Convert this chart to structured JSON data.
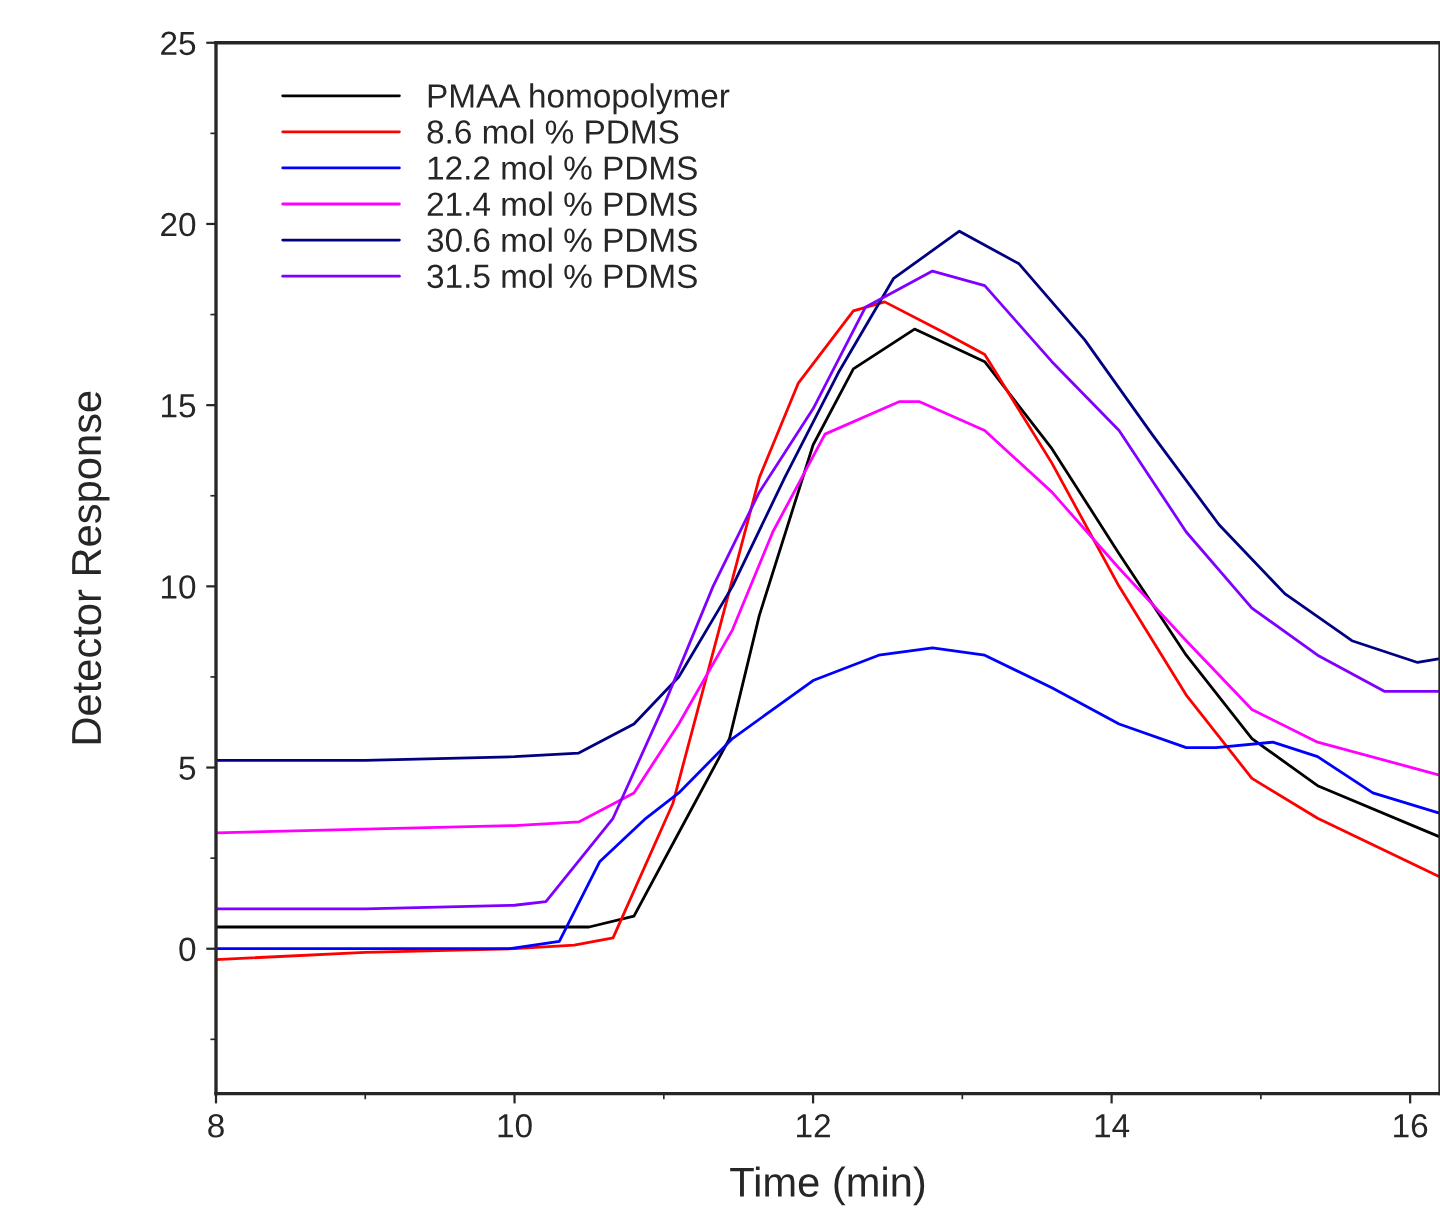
{
  "chart_data": {
    "type": "line",
    "xlabel": "Time (min)",
    "ylabel": "Detector Response",
    "xlim": [
      8,
      16.2
    ],
    "ylim": [
      -4,
      25
    ],
    "xticks": [
      8,
      10,
      12,
      14,
      16
    ],
    "yticks": [
      0,
      5,
      10,
      15,
      20,
      25
    ],
    "grid": false,
    "legend": "top left",
    "marker": "none",
    "line_style": "solid",
    "series": [
      {
        "name": "PMAA homopolymer",
        "color": "#000000",
        "x": [
          8,
          9,
          10,
          10.5,
          10.8,
          11.1,
          11.44,
          11.64,
          12.0,
          12.27,
          12.68,
          13.15,
          13.6,
          14.05,
          14.5,
          14.94,
          15.38,
          16.19
        ],
        "values": [
          0.6,
          0.6,
          0.6,
          0.6,
          0.9,
          3.2,
          5.8,
          9.2,
          13.9,
          16.0,
          17.1,
          16.2,
          13.8,
          10.9,
          8.1,
          5.8,
          4.5,
          3.1
        ]
      },
      {
        "name": "8.6 mol % PDMS",
        "color": "#ff0000",
        "x": [
          8,
          9,
          10,
          10.4,
          10.66,
          11.06,
          11.37,
          11.64,
          11.9,
          12.27,
          12.48,
          12.88,
          13.15,
          13.6,
          14.05,
          14.5,
          14.94,
          15.38,
          16.19
        ],
        "values": [
          -0.3,
          -0.1,
          0.0,
          0.1,
          0.3,
          4.0,
          8.8,
          13.0,
          15.6,
          17.6,
          17.85,
          17.0,
          16.4,
          13.4,
          10.0,
          7.0,
          4.7,
          3.6,
          2.0
        ]
      },
      {
        "name": "12.2 mol % PDMS",
        "color": "#0000ff",
        "x": [
          8,
          9,
          9.97,
          10.3,
          10.57,
          10.88,
          11.1,
          11.46,
          12.0,
          12.44,
          12.8,
          13.15,
          13.6,
          14.05,
          14.5,
          14.7,
          15.08,
          15.38,
          15.75,
          16.19
        ],
        "values": [
          0.0,
          0.0,
          0.0,
          0.2,
          2.4,
          3.6,
          4.3,
          5.8,
          7.4,
          8.1,
          8.3,
          8.1,
          7.2,
          6.2,
          5.55,
          5.55,
          5.7,
          5.3,
          4.3,
          3.75
        ]
      },
      {
        "name": "21.4 mol % PDMS",
        "color": "#ff00ff",
        "x": [
          8,
          9,
          10,
          10.43,
          10.8,
          11.1,
          11.46,
          11.73,
          12.08,
          12.58,
          12.71,
          13.15,
          13.6,
          14.05,
          14.5,
          14.94,
          15.38,
          16.19
        ],
        "values": [
          3.2,
          3.3,
          3.4,
          3.5,
          4.3,
          6.2,
          8.8,
          11.5,
          14.2,
          15.1,
          15.1,
          14.3,
          12.6,
          10.5,
          8.5,
          6.6,
          5.7,
          4.8
        ]
      },
      {
        "name": "30.6 mol % PDMS",
        "color": "#000080",
        "x": [
          8,
          9,
          10,
          10.43,
          10.8,
          11.1,
          11.46,
          11.81,
          12.17,
          12.54,
          12.98,
          13.38,
          13.82,
          14.27,
          14.72,
          15.16,
          15.61,
          16.05,
          16.19
        ],
        "values": [
          5.2,
          5.2,
          5.3,
          5.4,
          6.2,
          7.5,
          10.0,
          13.0,
          15.9,
          18.5,
          19.8,
          18.9,
          16.8,
          14.2,
          11.7,
          9.8,
          8.5,
          7.9,
          8.0
        ]
      },
      {
        "name": "31.5 mol % PDMS",
        "color": "#8000ff",
        "x": [
          8,
          9,
          10,
          10.21,
          10.66,
          11.01,
          11.33,
          11.64,
          12.0,
          12.35,
          12.8,
          13.15,
          13.6,
          14.05,
          14.5,
          14.94,
          15.38,
          15.83,
          16.19
        ],
        "values": [
          1.1,
          1.1,
          1.2,
          1.3,
          3.6,
          6.8,
          10.0,
          12.6,
          14.9,
          17.7,
          18.7,
          18.3,
          16.2,
          14.3,
          11.5,
          9.4,
          8.1,
          7.1,
          7.1
        ]
      }
    ]
  }
}
